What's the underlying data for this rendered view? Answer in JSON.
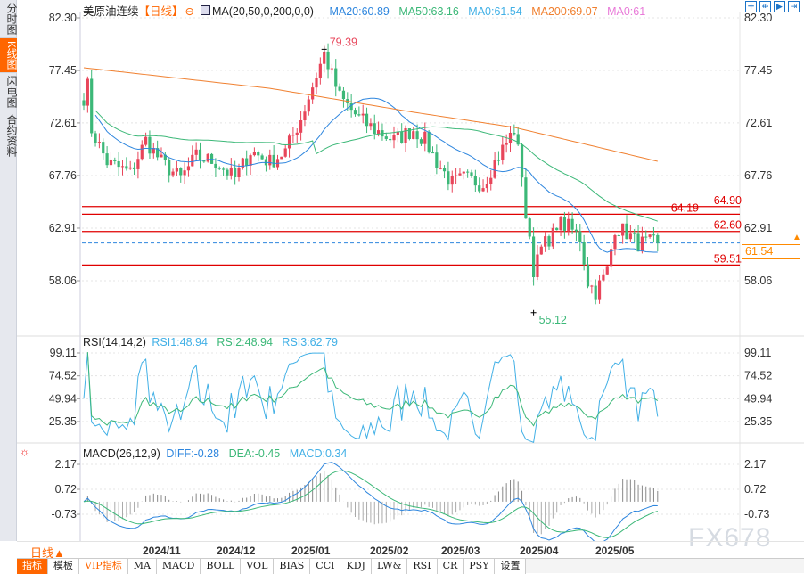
{
  "side_tabs": [
    {
      "label": "分时图",
      "active": false
    },
    {
      "label": "K线图",
      "active": true
    },
    {
      "label": "闪电图",
      "active": false
    },
    {
      "label": "合约资料",
      "active": false
    }
  ],
  "header": {
    "symbol": "美原油连续",
    "period_tag": "【日线】",
    "ma_params": "MA(20,50,0,200,0,0)",
    "ma20": "MA20:60.89",
    "ma50": "MA50:63.16",
    "ma0a": "MA0:61.54",
    "ma200": "MA200:69.07",
    "ma0b": "MA0:61"
  },
  "tools": [
    "crosshair-icon",
    "zoom-range-icon",
    "play-step-icon",
    "exit-icon"
  ],
  "price_axis": {
    "ticks": [
      "82.30",
      "77.45",
      "72.61",
      "67.76",
      "62.91",
      "58.06"
    ],
    "values": [
      82.3,
      77.45,
      72.61,
      67.76,
      62.91,
      58.06
    ]
  },
  "levels": [
    {
      "label": "64.90",
      "value": 64.9
    },
    {
      "label": "64.19",
      "value": 64.19
    },
    {
      "label": "62.60",
      "value": 62.6
    },
    {
      "label": "59.51",
      "value": 59.51
    }
  ],
  "current_price": {
    "label": "61.54",
    "value": 61.54
  },
  "annotations": {
    "high": "79.39",
    "low": "55.12"
  },
  "price_path": [
    [
      0,
      75
    ],
    [
      1,
      76
    ],
    [
      2,
      72
    ],
    [
      6,
      69
    ],
    [
      12,
      68
    ],
    [
      16,
      71
    ],
    [
      20,
      69
    ],
    [
      25,
      67.5
    ],
    [
      29,
      69.5
    ],
    [
      34,
      69
    ],
    [
      39,
      67.5
    ],
    [
      43,
      70
    ],
    [
      48,
      69
    ],
    [
      52,
      70
    ],
    [
      56,
      73
    ],
    [
      59,
      76
    ],
    [
      62,
      79
    ],
    [
      64,
      77
    ],
    [
      66,
      75
    ],
    [
      71,
      73
    ],
    [
      75,
      72
    ],
    [
      80,
      71
    ],
    [
      85,
      72
    ],
    [
      88,
      71
    ],
    [
      91,
      69
    ],
    [
      95,
      67
    ],
    [
      98,
      67.5
    ],
    [
      103,
      67
    ],
    [
      106,
      69
    ],
    [
      111,
      72
    ],
    [
      113,
      68
    ],
    [
      114,
      64
    ],
    [
      116,
      59
    ],
    [
      118,
      62
    ],
    [
      120,
      61
    ],
    [
      122,
      63.5
    ],
    [
      125,
      63
    ],
    [
      128,
      62
    ],
    [
      130,
      58
    ],
    [
      132,
      57
    ],
    [
      135,
      59
    ],
    [
      137,
      63
    ],
    [
      140,
      62.5
    ],
    [
      143,
      61.5
    ],
    [
      148,
      61.54
    ]
  ],
  "ma200_path": [
    [
      0,
      77.7
    ],
    [
      48,
      75.8
    ],
    [
      85,
      73.6
    ],
    [
      111,
      72.2
    ],
    [
      148,
      69.07
    ]
  ],
  "colors": {
    "up": "#e8455a",
    "down": "#3cb878",
    "ma20": "#2e86de",
    "ma50": "#3cb878",
    "ma200": "#f08030",
    "level": "#e00000",
    "current": "#ff8a00"
  },
  "rsi": {
    "title": "RSI(14,14,2)",
    "rsi1": "RSI1:48.94",
    "rsi2": "RSI2:48.94",
    "rsi3": "RSI3:62.79",
    "ticks": [
      "99.11",
      "74.52",
      "49.94",
      "25.35"
    ],
    "values": [
      99.11,
      74.52,
      49.94,
      25.35
    ]
  },
  "macd": {
    "title": "MACD(26,12,9)",
    "diff": "DIFF:-0.28",
    "dea": "DEA:-0.45",
    "macd": "MACD:0.34",
    "ticks": [
      "2.17",
      "0.72",
      "-0.73"
    ],
    "values": [
      2.17,
      0.72,
      -0.73
    ]
  },
  "period_selector": "日线▲",
  "dates": [
    "2024/11",
    "2024/12",
    "2025/01",
    "2025/02",
    "2025/03",
    "2025/04",
    "2025/05"
  ],
  "toolbar": [
    {
      "label": "指标",
      "style": "active"
    },
    {
      "label": "模板"
    },
    {
      "label": "VIP指标",
      "style": "vip"
    },
    {
      "label": "MA"
    },
    {
      "label": "MACD"
    },
    {
      "label": "BOLL"
    },
    {
      "label": "VOL"
    },
    {
      "label": "BIAS"
    },
    {
      "label": "CCI"
    },
    {
      "label": "KDJ"
    },
    {
      "label": "LW&"
    },
    {
      "label": "RSI"
    },
    {
      "label": "CR"
    },
    {
      "label": "PSY"
    },
    {
      "label": "设置"
    }
  ],
  "watermark": "FX678"
}
